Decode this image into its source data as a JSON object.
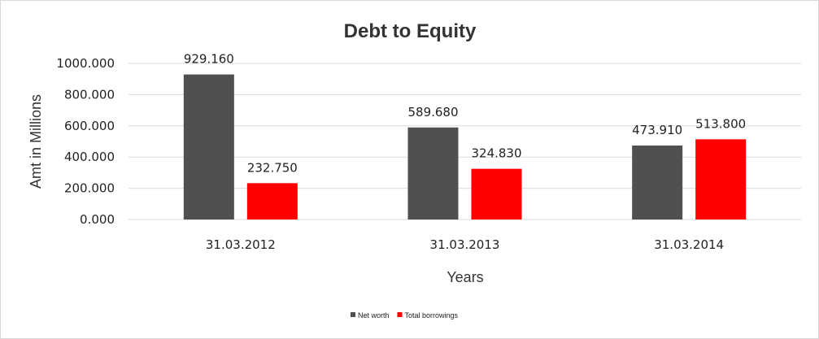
{
  "chart_data": {
    "type": "bar",
    "title": "Debt to Equity",
    "xlabel": "Years",
    "ylabel": "Amt in Millions",
    "categories": [
      "31.03.2012",
      "31.03.2013",
      "31.03.2014"
    ],
    "series": [
      {
        "name": "Net worth",
        "values": [
          929.16,
          589.68,
          473.91
        ],
        "labels": [
          "929.160",
          "589.680",
          "473.910"
        ],
        "color": "#505050"
      },
      {
        "name": "Total borrowings",
        "values": [
          232.75,
          324.83,
          513.8
        ],
        "labels": [
          "232.750",
          "324.830",
          "513.800"
        ],
        "color": "#ff0000"
      }
    ],
    "ylim": [
      0,
      1000
    ],
    "yticks": [
      {
        "value": 0,
        "label": "0.000"
      },
      {
        "value": 200,
        "label": "200.000"
      },
      {
        "value": 400,
        "label": "400.000"
      },
      {
        "value": 600,
        "label": "600.000"
      },
      {
        "value": 800,
        "label": "800.000"
      },
      {
        "value": 1000,
        "label": "1000.000"
      }
    ],
    "grid": true,
    "legend": "bottom"
  }
}
